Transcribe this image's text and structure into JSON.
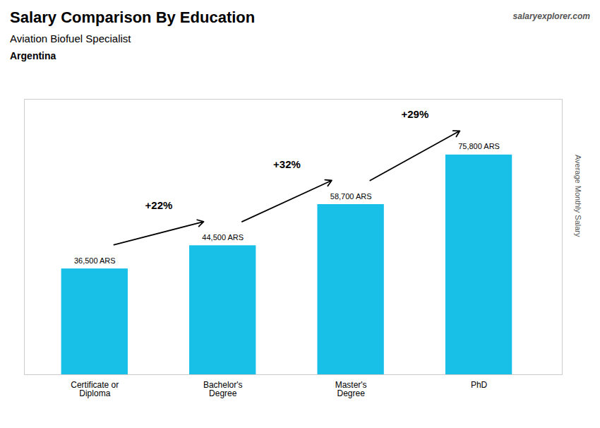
{
  "chart_data": {
    "type": "bar",
    "title": "Salary Comparison By Education",
    "subtitle": "Aviation Biofuel Specialist",
    "country": "Argentina",
    "source": "salaryexplorer.com",
    "ylabel": "Average Monthly Salary",
    "categories": [
      "Certificate or\nDiploma",
      "Bachelor's\nDegree",
      "Master's\nDegree",
      "PhD"
    ],
    "values": [
      36500,
      44500,
      58700,
      75800
    ],
    "value_labels": [
      "36,500 ARS",
      "44,500 ARS",
      "58,700 ARS",
      "75,800 ARS"
    ],
    "data_labels": true,
    "annotations": [
      "+22%",
      "+32%",
      "+29%"
    ],
    "color": "#18c0e8",
    "ylim": [
      0,
      95000
    ],
    "tick_labels": "x",
    "grid": false
  }
}
